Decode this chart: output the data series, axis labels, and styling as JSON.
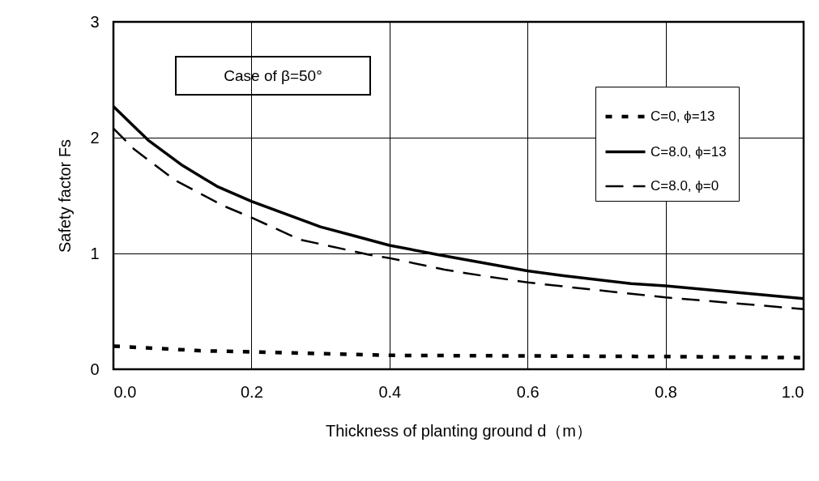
{
  "chart_data": {
    "type": "line",
    "xlabel": "Thickness of planting ground  d（m）",
    "ylabel": "Safety factor  Fs",
    "annotations": [
      "Case of β=50°"
    ],
    "xlim": [
      0,
      1
    ],
    "ylim": [
      0,
      3
    ],
    "xticks": [
      {
        "value": 0,
        "label": "0.0"
      },
      0.2,
      0.4,
      0.6,
      0.8,
      {
        "value": 1,
        "label": "1.0"
      }
    ],
    "yticks": [
      0,
      1,
      2,
      3
    ],
    "grid": true,
    "legend": "top right",
    "marker": "none",
    "series": [
      {
        "name": "C=0,    ϕ=13",
        "color": "#000000",
        "line_style": "dotted",
        "x": [
          0,
          0.125,
          0.2,
          0.4,
          0.6,
          0.8,
          1.0
        ],
        "values": [
          0.2,
          0.16,
          0.15,
          0.12,
          0.115,
          0.11,
          0.1
        ]
      },
      {
        "name": "C=8.0,  ϕ=13",
        "color": "#000000",
        "line_style": "solid",
        "x": [
          0,
          0.05,
          0.1,
          0.15,
          0.2,
          0.25,
          0.3,
          0.35,
          0.4,
          0.47,
          0.6,
          0.65,
          0.75,
          0.8,
          1.0
        ],
        "values": [
          2.27,
          1.98,
          1.76,
          1.58,
          1.45,
          1.34,
          1.23,
          1.15,
          1.07,
          0.99,
          0.85,
          0.81,
          0.74,
          0.72,
          0.61
        ]
      },
      {
        "name": "C=8.0,  ϕ=0",
        "color": "#000000",
        "line_style": "dashed",
        "x": [
          0,
          0.03,
          0.09,
          0.16,
          0.2,
          0.27,
          0.37,
          0.4,
          0.48,
          0.51,
          0.6,
          0.66,
          0.8,
          1.0
        ],
        "values": [
          2.08,
          1.9,
          1.63,
          1.41,
          1.31,
          1.12,
          0.99,
          0.96,
          0.86,
          0.83,
          0.75,
          0.71,
          0.62,
          0.52
        ]
      }
    ]
  }
}
